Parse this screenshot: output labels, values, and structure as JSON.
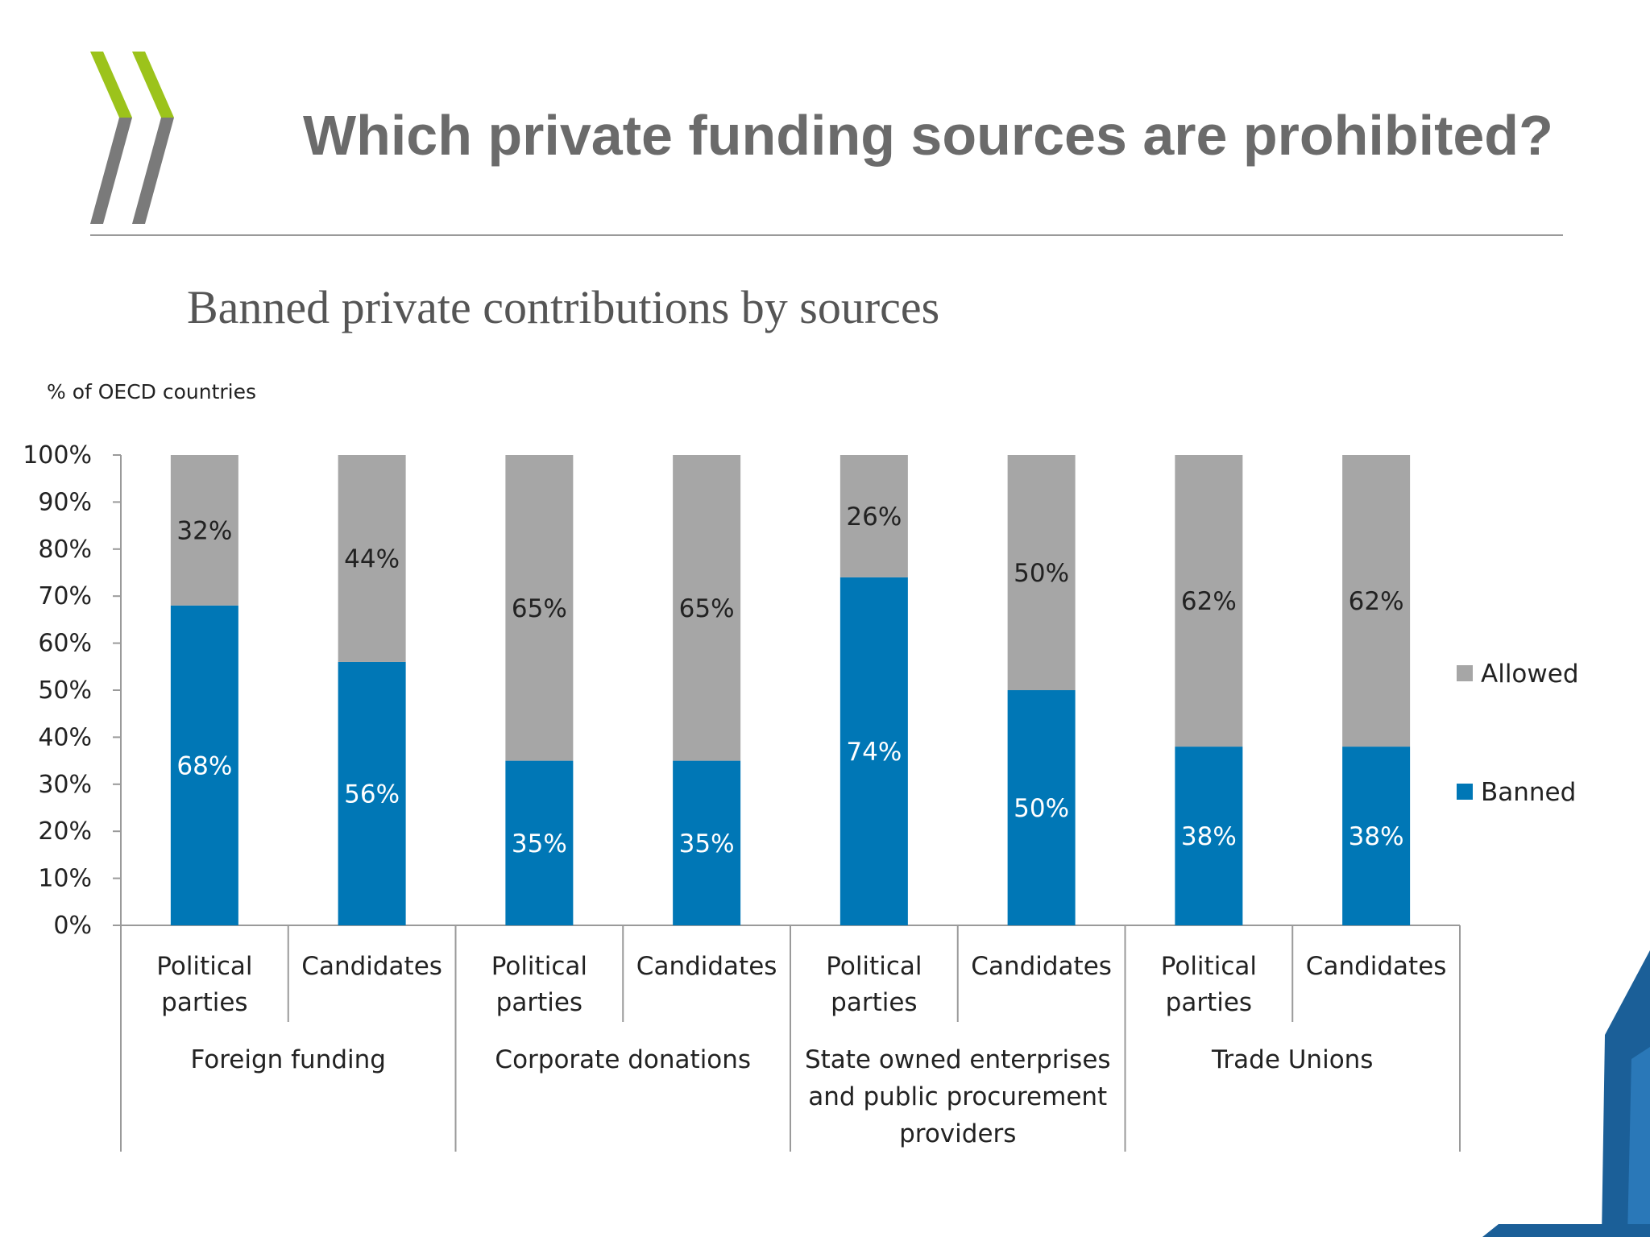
{
  "slide": {
    "title": "Which private funding sources are prohibited?",
    "subtitle": "Banned private contributions by sources",
    "logo_name": "OECD chevron logo"
  },
  "colors": {
    "banned": "#0077b6",
    "allowed": "#a6a6a6",
    "logo_green": "#9cc31b",
    "logo_gray": "#7a7a7a",
    "corner_blue": "#1b5f98"
  },
  "chart_data": {
    "type": "bar",
    "stacked": true,
    "ylabel": "% of OECD countries",
    "ylim": [
      0,
      100
    ],
    "yticks": [
      "0%",
      "10%",
      "20%",
      "30%",
      "40%",
      "50%",
      "60%",
      "70%",
      "80%",
      "90%",
      "100%"
    ],
    "groups": [
      {
        "name": "Foreign funding",
        "name_lines": [
          "Foreign funding"
        ]
      },
      {
        "name": "Corporate donations",
        "name_lines": [
          "Corporate donations"
        ]
      },
      {
        "name": "State owned enterprises and public procurement providers",
        "name_lines": [
          "State owned enterprises",
          "and public procurement",
          "providers"
        ]
      },
      {
        "name": "Trade Unions",
        "name_lines": [
          "Trade Unions"
        ]
      }
    ],
    "categories": [
      {
        "group": "Foreign funding",
        "label": "Political parties",
        "label_lines": [
          "Political",
          "parties"
        ]
      },
      {
        "group": "Foreign funding",
        "label": "Candidates",
        "label_lines": [
          "Candidates"
        ]
      },
      {
        "group": "Corporate donations",
        "label": "Political parties",
        "label_lines": [
          "Political",
          "parties"
        ]
      },
      {
        "group": "Corporate donations",
        "label": "Candidates",
        "label_lines": [
          "Candidates"
        ]
      },
      {
        "group": "State owned enterprises and public procurement providers",
        "label": "Political parties",
        "label_lines": [
          "Political",
          "parties"
        ]
      },
      {
        "group": "State owned enterprises and public procurement providers",
        "label": "Candidates",
        "label_lines": [
          "Candidates"
        ]
      },
      {
        "group": "Trade Unions",
        "label": "Political parties",
        "label_lines": [
          "Political",
          "parties"
        ]
      },
      {
        "group": "Trade Unions",
        "label": "Candidates",
        "label_lines": [
          "Candidates"
        ]
      }
    ],
    "series": [
      {
        "name": "Banned",
        "values": [
          68,
          56,
          35,
          35,
          74,
          50,
          38,
          38
        ],
        "labels": [
          "68%",
          "56%",
          "35%",
          "35%",
          "74%",
          "50%",
          "38%",
          "38%"
        ]
      },
      {
        "name": "Allowed",
        "values": [
          32,
          44,
          65,
          65,
          26,
          50,
          62,
          62
        ],
        "labels": [
          "32%",
          "44%",
          "65%",
          "65%",
          "26%",
          "50%",
          "62%",
          "62%"
        ]
      }
    ],
    "legend": {
      "position": "right",
      "items": [
        "Allowed",
        "Banned"
      ]
    }
  }
}
